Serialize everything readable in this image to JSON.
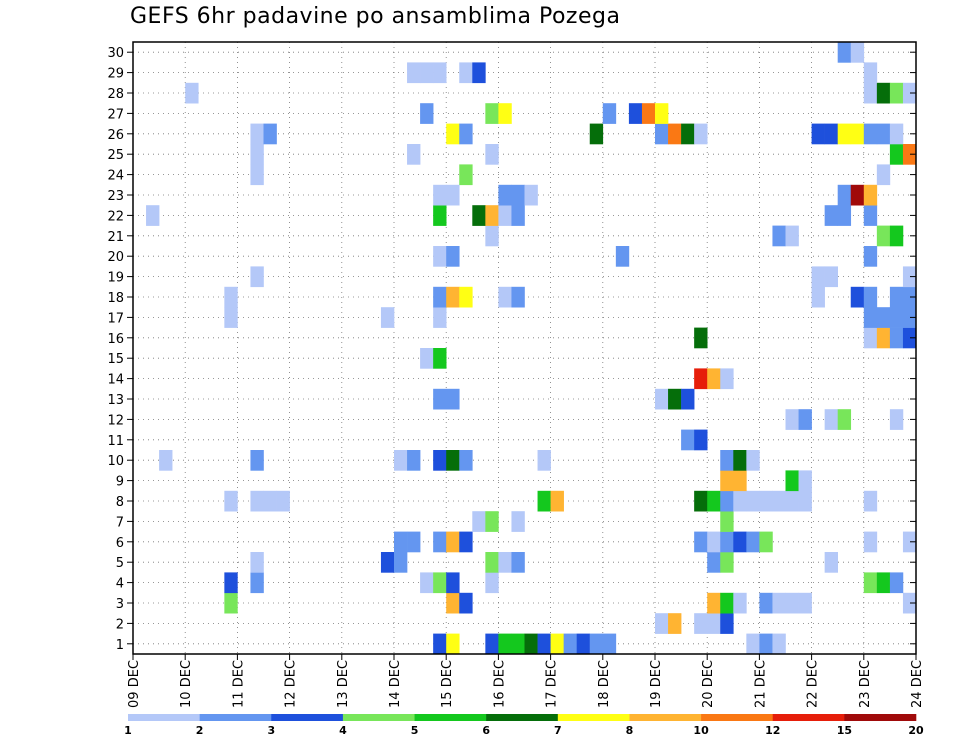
{
  "title": "GEFS 6hr padavine po ansamblima Pozega",
  "chart_data": {
    "type": "heatmap",
    "title": "GEFS 6hr padavine po ansamblima Pozega",
    "x_ticks": [
      "09 DEC",
      "10 DEC",
      "11 DEC",
      "12 DEC",
      "13 DEC",
      "14 DEC",
      "15 DEC",
      "16 DEC",
      "17 DEC",
      "18 DEC",
      "19 DEC",
      "20 DEC",
      "21 DEC",
      "22 DEC",
      "23 DEC",
      "24 DEC"
    ],
    "y_ticks": [
      1,
      2,
      3,
      4,
      5,
      6,
      7,
      8,
      9,
      10,
      11,
      12,
      13,
      14,
      15,
      16,
      17,
      18,
      19,
      20,
      21,
      22,
      23,
      24,
      25,
      26,
      27,
      28,
      29,
      30
    ],
    "xlim": [
      0,
      60
    ],
    "ylim": [
      0.5,
      30.5
    ],
    "grid": true,
    "colorbar": {
      "labels": [
        "1",
        "2",
        "3",
        "4",
        "5",
        "6",
        "7",
        "8",
        "10",
        "12",
        "15",
        "20"
      ],
      "colors": [
        "#b4c8f8",
        "#6496f0",
        "#1e50dc",
        "#78e65a",
        "#14c81e",
        "#056e0a",
        "#ffff14",
        "#ffb432",
        "#fa7814",
        "#e61e0a",
        "#a00a0a"
      ]
    },
    "cells": [
      [
        1,
        24,
        3
      ],
      [
        1,
        25,
        7
      ],
      [
        1,
        28,
        3
      ],
      [
        1,
        29,
        5
      ],
      [
        1,
        30,
        5
      ],
      [
        1,
        31,
        6
      ],
      [
        1,
        32,
        3
      ],
      [
        1,
        33,
        7
      ],
      [
        1,
        34,
        2
      ],
      [
        1,
        35,
        3
      ],
      [
        1,
        36,
        2
      ],
      [
        1,
        37,
        2
      ],
      [
        1,
        48,
        1
      ],
      [
        1,
        49,
        2
      ],
      [
        1,
        50,
        1
      ],
      [
        2,
        41,
        1
      ],
      [
        2,
        42,
        8
      ],
      [
        2,
        44,
        1
      ],
      [
        2,
        45,
        1
      ],
      [
        2,
        46,
        3
      ],
      [
        3,
        8,
        4
      ],
      [
        3,
        25,
        8
      ],
      [
        3,
        26,
        3
      ],
      [
        3,
        45,
        8
      ],
      [
        3,
        46,
        5
      ],
      [
        3,
        47,
        1
      ],
      [
        3,
        49,
        2
      ],
      [
        3,
        50,
        1
      ],
      [
        3,
        51,
        1
      ],
      [
        3,
        52,
        1
      ],
      [
        3,
        60,
        1
      ],
      [
        4,
        8,
        3
      ],
      [
        4,
        10,
        2
      ],
      [
        4,
        23,
        1
      ],
      [
        4,
        24,
        4
      ],
      [
        4,
        25,
        3
      ],
      [
        4,
        28,
        1
      ],
      [
        4,
        57,
        4
      ],
      [
        4,
        58,
        5
      ],
      [
        4,
        59,
        2
      ],
      [
        5,
        10,
        1
      ],
      [
        5,
        20,
        3
      ],
      [
        5,
        21,
        2
      ],
      [
        5,
        28,
        4
      ],
      [
        5,
        29,
        1
      ],
      [
        5,
        30,
        2
      ],
      [
        5,
        45,
        2
      ],
      [
        5,
        46,
        4
      ],
      [
        5,
        54,
        1
      ],
      [
        6,
        21,
        2
      ],
      [
        6,
        22,
        2
      ],
      [
        6,
        24,
        2
      ],
      [
        6,
        25,
        8
      ],
      [
        6,
        26,
        3
      ],
      [
        6,
        44,
        2
      ],
      [
        6,
        45,
        1
      ],
      [
        6,
        46,
        2
      ],
      [
        6,
        47,
        3
      ],
      [
        6,
        48,
        2
      ],
      [
        6,
        49,
        4
      ],
      [
        6,
        57,
        1
      ],
      [
        6,
        60,
        1
      ],
      [
        7,
        27,
        1
      ],
      [
        7,
        28,
        4
      ],
      [
        7,
        30,
        1
      ],
      [
        7,
        46,
        4
      ],
      [
        8,
        8,
        1
      ],
      [
        8,
        10,
        1
      ],
      [
        8,
        11,
        1
      ],
      [
        8,
        12,
        1
      ],
      [
        8,
        32,
        5
      ],
      [
        8,
        33,
        8
      ],
      [
        8,
        44,
        6
      ],
      [
        8,
        45,
        5
      ],
      [
        8,
        46,
        2
      ],
      [
        8,
        47,
        1
      ],
      [
        8,
        48,
        1
      ],
      [
        8,
        49,
        1
      ],
      [
        8,
        50,
        1
      ],
      [
        8,
        51,
        1
      ],
      [
        8,
        52,
        1
      ],
      [
        8,
        57,
        1
      ],
      [
        9,
        46,
        8
      ],
      [
        9,
        47,
        8
      ],
      [
        9,
        51,
        5
      ],
      [
        9,
        52,
        1
      ],
      [
        10,
        3,
        1
      ],
      [
        10,
        10,
        2
      ],
      [
        10,
        21,
        1
      ],
      [
        10,
        22,
        2
      ],
      [
        10,
        24,
        3
      ],
      [
        10,
        25,
        6
      ],
      [
        10,
        26,
        2
      ],
      [
        10,
        32,
        1
      ],
      [
        10,
        46,
        2
      ],
      [
        10,
        47,
        6
      ],
      [
        10,
        48,
        1
      ],
      [
        11,
        43,
        2
      ],
      [
        11,
        44,
        3
      ],
      [
        12,
        51,
        1
      ],
      [
        12,
        52,
        2
      ],
      [
        12,
        54,
        1
      ],
      [
        12,
        55,
        4
      ],
      [
        12,
        59,
        1
      ],
      [
        13,
        24,
        2
      ],
      [
        13,
        25,
        2
      ],
      [
        13,
        41,
        1
      ],
      [
        13,
        42,
        6
      ],
      [
        13,
        43,
        3
      ],
      [
        14,
        44,
        10
      ],
      [
        14,
        45,
        8
      ],
      [
        14,
        46,
        1
      ],
      [
        15,
        23,
        1
      ],
      [
        15,
        24,
        5
      ],
      [
        16,
        44,
        6
      ],
      [
        16,
        57,
        1
      ],
      [
        16,
        58,
        8
      ],
      [
        16,
        59,
        2
      ],
      [
        16,
        60,
        3
      ],
      [
        17,
        8,
        1
      ],
      [
        17,
        20,
        1
      ],
      [
        17,
        24,
        1
      ],
      [
        17,
        57,
        2
      ],
      [
        17,
        58,
        2
      ],
      [
        17,
        59,
        2
      ],
      [
        17,
        60,
        2
      ],
      [
        18,
        8,
        1
      ],
      [
        18,
        24,
        2
      ],
      [
        18,
        25,
        8
      ],
      [
        18,
        26,
        7
      ],
      [
        18,
        29,
        1
      ],
      [
        18,
        30,
        2
      ],
      [
        18,
        53,
        1
      ],
      [
        18,
        56,
        3
      ],
      [
        18,
        57,
        2
      ],
      [
        18,
        59,
        2
      ],
      [
        18,
        60,
        2
      ],
      [
        19,
        10,
        1
      ],
      [
        19,
        53,
        1
      ],
      [
        19,
        54,
        1
      ],
      [
        19,
        60,
        1
      ],
      [
        20,
        24,
        1
      ],
      [
        20,
        25,
        2
      ],
      [
        20,
        38,
        2
      ],
      [
        20,
        57,
        2
      ],
      [
        21,
        28,
        1
      ],
      [
        21,
        50,
        2
      ],
      [
        21,
        51,
        1
      ],
      [
        21,
        58,
        4
      ],
      [
        21,
        59,
        5
      ],
      [
        22,
        2,
        1
      ],
      [
        22,
        24,
        5
      ],
      [
        22,
        27,
        6
      ],
      [
        22,
        28,
        8
      ],
      [
        22,
        29,
        1
      ],
      [
        22,
        30,
        2
      ],
      [
        22,
        54,
        2
      ],
      [
        22,
        55,
        2
      ],
      [
        22,
        57,
        2
      ],
      [
        23,
        24,
        1
      ],
      [
        23,
        25,
        1
      ],
      [
        23,
        29,
        2
      ],
      [
        23,
        30,
        2
      ],
      [
        23,
        31,
        1
      ],
      [
        23,
        55,
        2
      ],
      [
        23,
        56,
        11
      ],
      [
        23,
        57,
        8
      ],
      [
        24,
        10,
        1
      ],
      [
        24,
        26,
        4
      ],
      [
        24,
        58,
        1
      ],
      [
        25,
        10,
        1
      ],
      [
        25,
        22,
        1
      ],
      [
        25,
        28,
        1
      ],
      [
        25,
        59,
        5
      ],
      [
        25,
        60,
        9
      ],
      [
        26,
        10,
        1
      ],
      [
        26,
        11,
        2
      ],
      [
        26,
        25,
        7
      ],
      [
        26,
        26,
        2
      ],
      [
        26,
        36,
        6
      ],
      [
        26,
        41,
        2
      ],
      [
        26,
        42,
        9
      ],
      [
        26,
        43,
        6
      ],
      [
        26,
        44,
        1
      ],
      [
        26,
        53,
        3
      ],
      [
        26,
        54,
        3
      ],
      [
        26,
        55,
        7
      ],
      [
        26,
        56,
        7
      ],
      [
        26,
        57,
        2
      ],
      [
        26,
        58,
        2
      ],
      [
        26,
        59,
        1
      ],
      [
        27,
        23,
        2
      ],
      [
        27,
        28,
        4
      ],
      [
        27,
        29,
        7
      ],
      [
        27,
        37,
        2
      ],
      [
        27,
        39,
        3
      ],
      [
        27,
        40,
        9
      ],
      [
        27,
        41,
        7
      ],
      [
        28,
        5,
        1
      ],
      [
        28,
        57,
        1
      ],
      [
        28,
        58,
        6
      ],
      [
        28,
        59,
        4
      ],
      [
        28,
        60,
        1
      ],
      [
        29,
        22,
        1
      ],
      [
        29,
        23,
        1
      ],
      [
        29,
        24,
        1
      ],
      [
        29,
        26,
        1
      ],
      [
        29,
        27,
        3
      ],
      [
        29,
        57,
        1
      ],
      [
        30,
        55,
        2
      ],
      [
        30,
        56,
        1
      ]
    ]
  }
}
